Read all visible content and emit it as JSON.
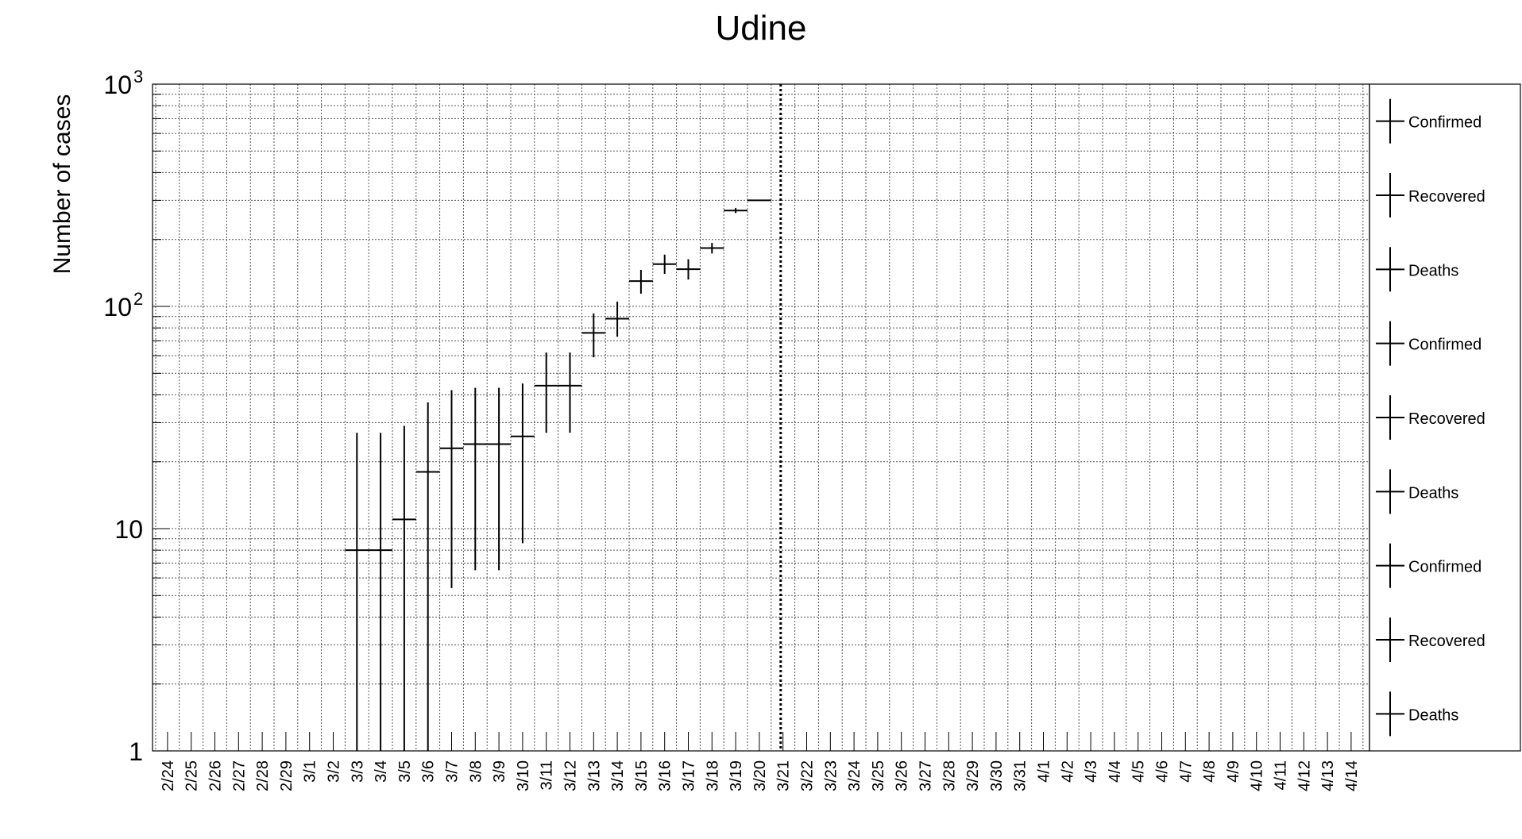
{
  "chart_data": {
    "type": "scatter",
    "title": "Udine",
    "ylabel": "Number of cases",
    "xlabel": "",
    "yscale": "log",
    "ylim": [
      1,
      1000
    ],
    "grid": true,
    "y_tick_labels": [
      "1",
      "10",
      "10",
      "10"
    ],
    "y_tick_exponents": [
      "",
      "",
      "2",
      "3"
    ],
    "categories": [
      "2/24",
      "2/25",
      "2/26",
      "2/27",
      "2/28",
      "2/29",
      "3/1",
      "3/2",
      "3/3",
      "3/4",
      "3/5",
      "3/6",
      "3/7",
      "3/8",
      "3/9",
      "3/10",
      "3/11",
      "3/12",
      "3/13",
      "3/14",
      "3/15",
      "3/16",
      "3/17",
      "3/18",
      "3/19",
      "3/20",
      "3/21",
      "3/22",
      "3/23",
      "3/24",
      "3/25",
      "3/26",
      "3/27",
      "3/28",
      "3/29",
      "3/30",
      "3/31",
      "4/1",
      "4/2",
      "4/3",
      "4/4",
      "4/5",
      "4/6",
      "4/7",
      "4/8",
      "4/9",
      "4/10",
      "4/11",
      "4/12",
      "4/13",
      "4/14"
    ],
    "series": [
      {
        "name": "Confirmed",
        "color": "#000000",
        "points": [
          {
            "x": "3/3",
            "y": 8,
            "ylow": 1,
            "yhigh": 27
          },
          {
            "x": "3/4",
            "y": 8,
            "ylow": 1,
            "yhigh": 27
          },
          {
            "x": "3/5",
            "y": 11,
            "ylow": 1,
            "yhigh": 29
          },
          {
            "x": "3/6",
            "y": 18,
            "ylow": 1,
            "yhigh": 37
          },
          {
            "x": "3/7",
            "y": 23,
            "ylow": 5.4,
            "yhigh": 42
          },
          {
            "x": "3/8",
            "y": 24,
            "ylow": 6.5,
            "yhigh": 43
          },
          {
            "x": "3/9",
            "y": 24,
            "ylow": 6.5,
            "yhigh": 43
          },
          {
            "x": "3/10",
            "y": 26,
            "ylow": 8.6,
            "yhigh": 45
          },
          {
            "x": "3/11",
            "y": 44,
            "ylow": 27,
            "yhigh": 62
          },
          {
            "x": "3/12",
            "y": 44,
            "ylow": 27,
            "yhigh": 62
          },
          {
            "x": "3/13",
            "y": 76,
            "ylow": 59,
            "yhigh": 93
          },
          {
            "x": "3/14",
            "y": 88,
            "ylow": 73,
            "yhigh": 105
          },
          {
            "x": "3/15",
            "y": 130,
            "ylow": 114,
            "yhigh": 146
          },
          {
            "x": "3/16",
            "y": 155,
            "ylow": 140,
            "yhigh": 171
          },
          {
            "x": "3/17",
            "y": 147,
            "ylow": 132,
            "yhigh": 163
          },
          {
            "x": "3/18",
            "y": 183,
            "ylow": 173,
            "yhigh": 193
          },
          {
            "x": "3/19",
            "y": 270,
            "ylow": 263,
            "yhigh": 277
          },
          {
            "x": "3/20",
            "y": 300,
            "ylow": 300,
            "yhigh": 300
          }
        ]
      }
    ],
    "vertical_marker": {
      "after": "3/20",
      "style": "dotted"
    },
    "legend": {
      "position": "right",
      "entries": [
        "Confirmed",
        "Recovered",
        "Deaths",
        "Confirmed",
        "Recovered",
        "Deaths",
        "Confirmed",
        "Recovered",
        "Deaths"
      ]
    }
  }
}
